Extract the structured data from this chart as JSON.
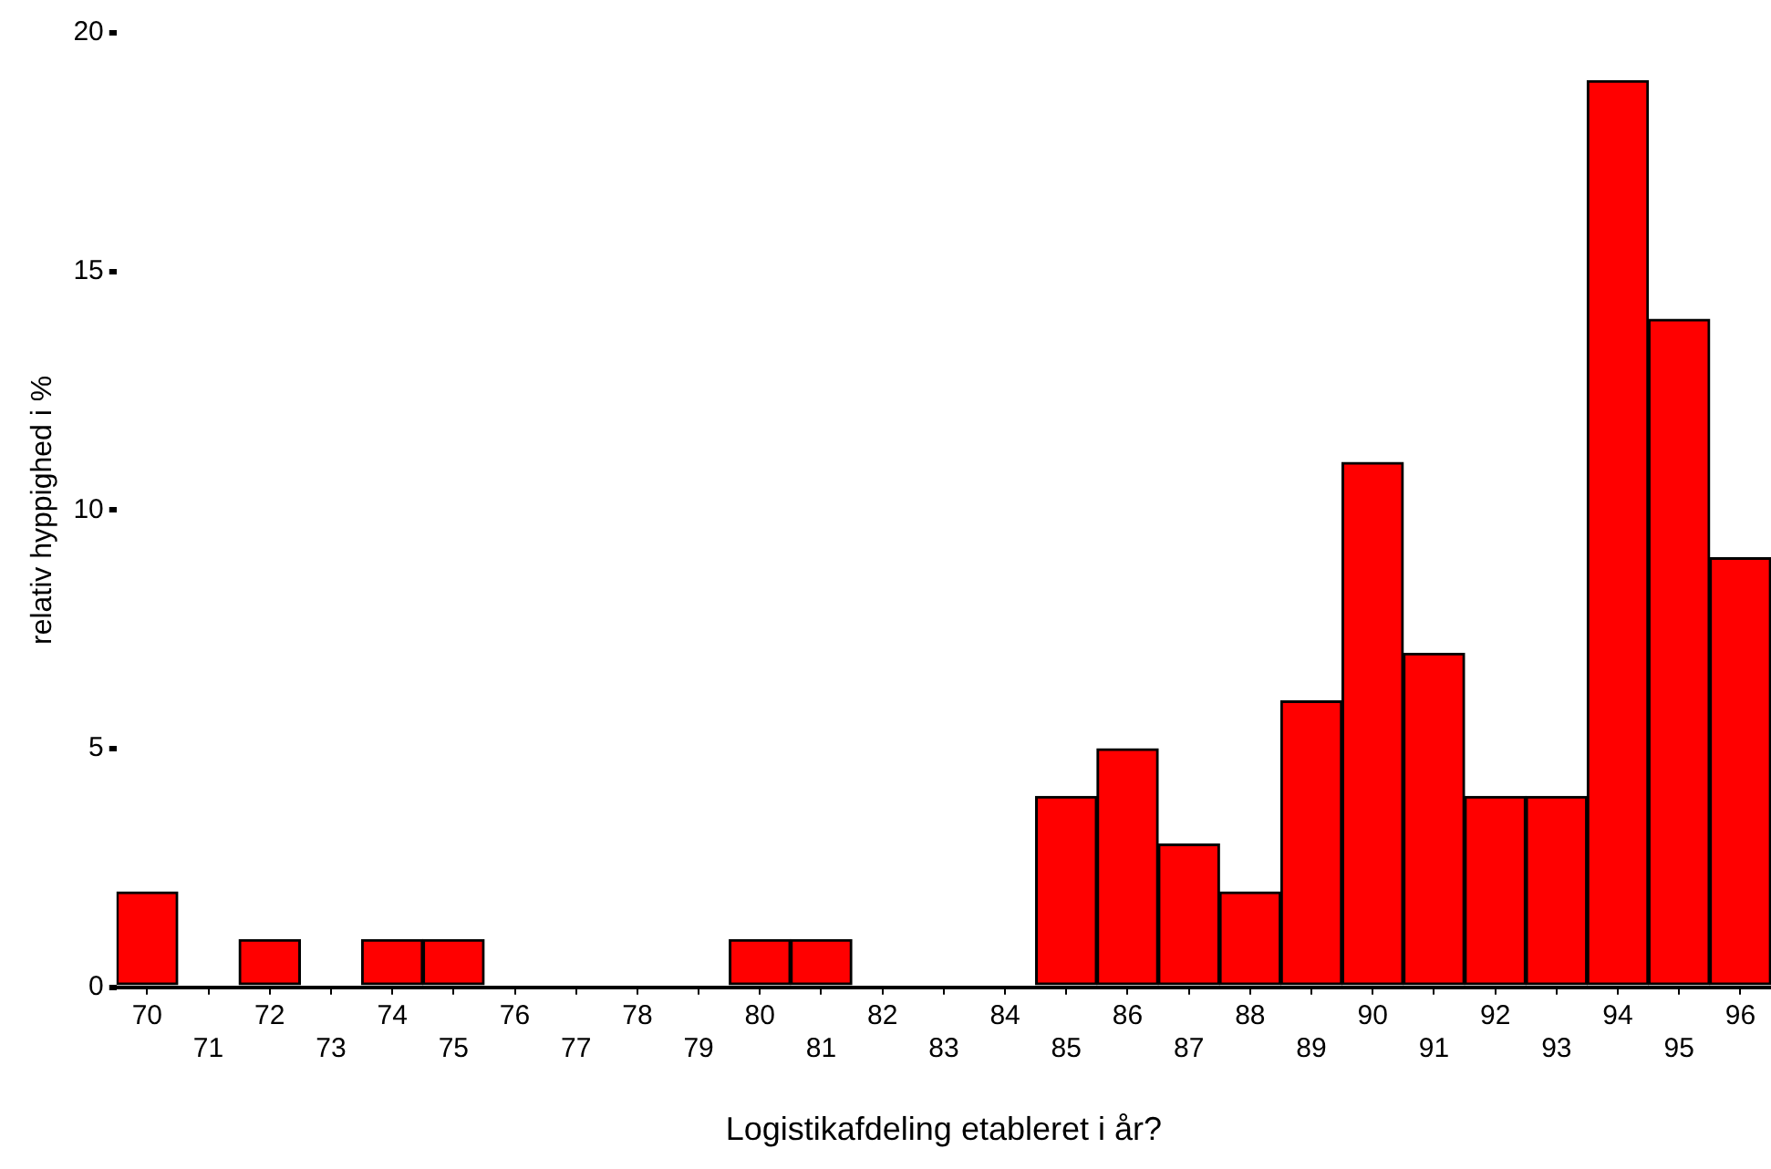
{
  "chart_data": {
    "type": "bar",
    "xlabel": "Logistikafdeling etableret i år?",
    "ylabel": "relativ hyppighed i %",
    "categories": [
      "70",
      "71",
      "72",
      "73",
      "74",
      "75",
      "76",
      "77",
      "78",
      "79",
      "80",
      "81",
      "82",
      "83",
      "84",
      "85",
      "86",
      "87",
      "88",
      "89",
      "90",
      "91",
      "92",
      "93",
      "94",
      "95",
      "96"
    ],
    "values": [
      2,
      0,
      1,
      0,
      1,
      1,
      0,
      0,
      0,
      0,
      1,
      1,
      0,
      0,
      0,
      4,
      5,
      3,
      2,
      6,
      11,
      7,
      4,
      4,
      19,
      14,
      9
    ],
    "color": "#ff0000",
    "ylim": [
      0,
      20
    ],
    "yticks": [
      0,
      5,
      10,
      15,
      20
    ],
    "grid": false,
    "legend": false
  }
}
